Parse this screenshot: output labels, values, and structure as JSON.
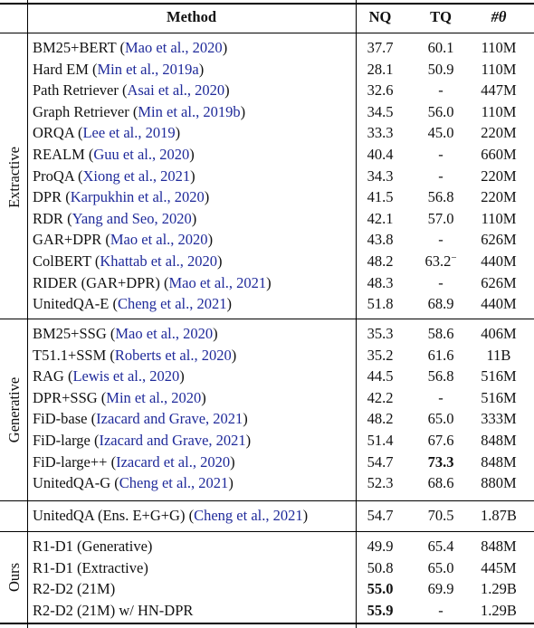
{
  "header": {
    "method": "Method",
    "nq": "NQ",
    "tq": "TQ",
    "params": "#θ"
  },
  "groups": {
    "extractive": "Extractive",
    "generative": "Generative",
    "ours": "Ours"
  },
  "rows": [
    {
      "name": "BM25+BERT",
      "cite": "Mao et al., 2020",
      "nq": "37.7",
      "tq": "60.1",
      "params": "110M"
    },
    {
      "name": "Hard EM",
      "cite": "Min et al., 2019a",
      "nq": "28.1",
      "tq": "50.9",
      "params": "110M"
    },
    {
      "name": "Path Retriever",
      "cite": "Asai et al., 2020",
      "nq": "32.6",
      "tq": "-",
      "params": "447M"
    },
    {
      "name": "Graph Retriever",
      "cite": "Min et al., 2019b",
      "nq": "34.5",
      "tq": "56.0",
      "params": "110M"
    },
    {
      "name": "ORQA",
      "cite": "Lee et al., 2019",
      "nq": "33.3",
      "tq": "45.0",
      "params": "220M"
    },
    {
      "name": "REALM",
      "cite": "Guu et al., 2020",
      "nq": "40.4",
      "tq": "-",
      "params": "660M"
    },
    {
      "name": "ProQA",
      "cite": "Xiong et al., 2021",
      "nq": "34.3",
      "tq": "-",
      "params": "220M"
    },
    {
      "name": "DPR",
      "cite": "Karpukhin et al., 2020",
      "nq": "41.5",
      "tq": "56.8",
      "params": "220M"
    },
    {
      "name": "RDR",
      "cite": "Yang and Seo, 2020",
      "nq": "42.1",
      "tq": "57.0",
      "params": "110M"
    },
    {
      "name": "GAR+DPR",
      "cite": "Mao et al., 2020",
      "nq": "43.8",
      "tq": "-",
      "params": "626M"
    },
    {
      "name": "ColBERT",
      "cite": "Khattab et al., 2020",
      "nq": "48.2",
      "tq": "63.2",
      "tq_sup": "−",
      "params": "440M"
    },
    {
      "name": "RIDER (GAR+DPR)",
      "cite": "Mao et al., 2021",
      "nq": "48.3",
      "tq": "-",
      "params": "626M"
    },
    {
      "name": "UnitedQA-E",
      "cite": "Cheng et al., 2021",
      "nq": "51.8",
      "tq": "68.9",
      "params": "440M"
    },
    {
      "name": "BM25+SSG",
      "cite": "Mao et al., 2020",
      "nq": "35.3",
      "tq": "58.6",
      "params": "406M"
    },
    {
      "name": "T51.1+SSM",
      "cite": "Roberts et al., 2020",
      "nq": "35.2",
      "tq": "61.6",
      "params": "11B"
    },
    {
      "name": "RAG",
      "cite": "Lewis et al., 2020",
      "nq": "44.5",
      "tq": "56.8",
      "params": "516M"
    },
    {
      "name": "DPR+SSG",
      "cite": "Min et al., 2020",
      "nq": "42.2",
      "tq": "-",
      "params": "516M"
    },
    {
      "name": "FiD-base",
      "cite": "Izacard and Grave, 2021",
      "nq": "48.2",
      "tq": "65.0",
      "params": "333M"
    },
    {
      "name": "FiD-large",
      "cite": "Izacard and Grave, 2021",
      "nq": "51.4",
      "tq": "67.6",
      "params": "848M"
    },
    {
      "name": "FiD-large++",
      "cite": "Izacard et al., 2020",
      "nq": "54.7",
      "tq": "73.3",
      "tq_bold": true,
      "params": "848M"
    },
    {
      "name": "UnitedQA-G",
      "cite": "Cheng et al., 2021",
      "nq": "52.3",
      "tq": "68.6",
      "params": "880M"
    },
    {
      "name": "UnitedQA (Ens. E+G+G)",
      "cite": "Cheng et al., 2021",
      "nq": "54.7",
      "tq": "70.5",
      "params": "1.87B"
    },
    {
      "name": "R1-D1 (Generative)",
      "cite": "",
      "nq": "49.9",
      "tq": "65.4",
      "params": "848M"
    },
    {
      "name": "R1-D1 (Extractive)",
      "cite": "",
      "nq": "50.8",
      "tq": "65.0",
      "params": "445M"
    },
    {
      "name": "R2-D2 (21M)",
      "cite": "",
      "nq": "55.0",
      "nq_bold": true,
      "tq": "69.9",
      "params": "1.29B"
    },
    {
      "name": "R2-D2 (21M) w/ HN-DPR",
      "cite": "",
      "nq": "55.9",
      "nq_bold": true,
      "tq": "-",
      "params": "1.29B"
    }
  ]
}
